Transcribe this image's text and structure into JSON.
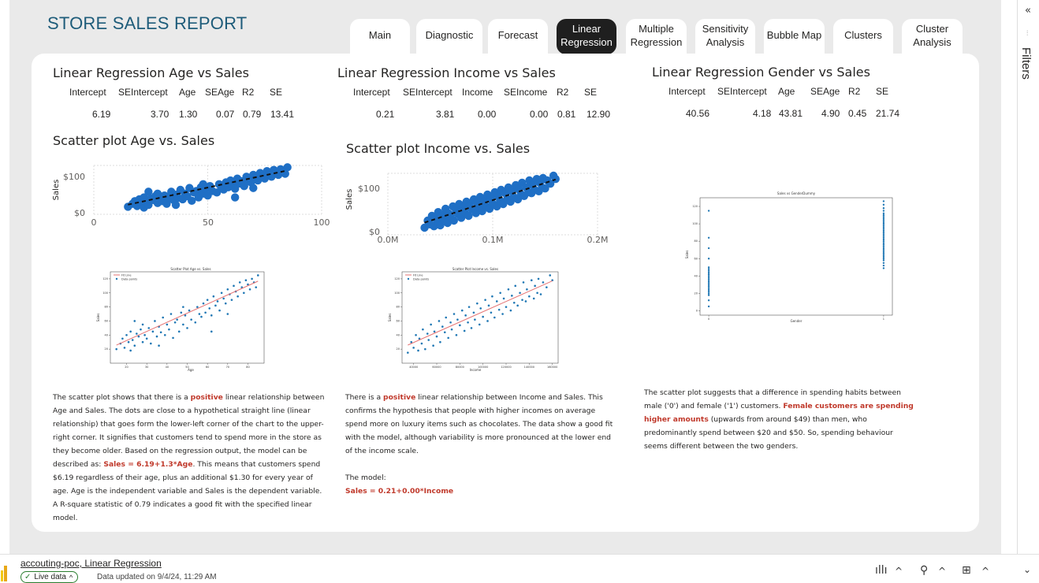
{
  "report": {
    "title": "STORE SALES REPORT"
  },
  "tabs": [
    {
      "label": "Main",
      "active": false
    },
    {
      "label": "Diagnostic",
      "active": false
    },
    {
      "label": "Forecast",
      "active": false
    },
    {
      "label": "Linear\nRegression",
      "active": true
    },
    {
      "label": "Multiple\nRegression",
      "active": false
    },
    {
      "label": "Sensitivity\nAnalysis",
      "active": false
    },
    {
      "label": "Bubble Map",
      "active": false
    },
    {
      "label": "Clusters",
      "active": false
    },
    {
      "label": "Cluster\nAnalysis",
      "active": false
    }
  ],
  "age": {
    "title": "Linear Regression Age vs Sales",
    "headers": [
      "Intercept",
      "SEIntercept",
      "Age",
      "SEAge",
      "R2",
      "SE"
    ],
    "values": [
      "6.19",
      "3.70",
      "1.30",
      "0.07",
      "0.79",
      "13.41"
    ],
    "scatter_title": "Scatter plot Age vs. Sales",
    "ylabel": "Sales",
    "yticks": [
      "$100",
      "$0"
    ],
    "xticks": [
      "0",
      "50",
      "100"
    ],
    "fig": {
      "title": "Scatter Plot Age vs. Sales",
      "legend_fit": "Fit Line",
      "legend_points": "Data points",
      "xlabel": "Age",
      "ylabel": "Sales"
    },
    "para": {
      "p1": "The scatter plot shows that there is a ",
      "h1": "positive",
      "p2": " linear relationship between Age and Sales. The dots are close to a hypothetical straight line (linear relationship) that goes form the lower-left corner of the chart to the upper-right corner. It signifies that customers tend to spend more in the store as they become older. Based on the regression output, the model can be described as: ",
      "h2": "Sales = 6.19+1.3*Age",
      "p3": ". This means that customers spend $6.19 regardless of their age, plus an additional $1.30 for every year of age. Age is the independent variable and Sales is the dependent variable. A R-square statistic of 0.79 indicates a good fit with the specified linear model."
    }
  },
  "income": {
    "title": "Linear Regression Income vs Sales",
    "headers": [
      "Intercept",
      "SEIntercept",
      "Income",
      "SEIncome",
      "R2",
      "SE"
    ],
    "values": [
      "0.21",
      "3.81",
      "0.00",
      "0.00",
      "0.81",
      "12.90"
    ],
    "scatter_title": "Scatter plot Income vs. Sales",
    "ylabel": "Sales",
    "yticks": [
      "$100",
      "$0"
    ],
    "xticks": [
      "0.0M",
      "0.1M",
      "0.2M"
    ],
    "fig": {
      "title": "Scatter Plot Income vs. Sales",
      "legend_fit": "Fit Line",
      "legend_points": "Data points",
      "xlabel": "Income",
      "ylabel": "Sales"
    },
    "para": {
      "p1": "There is a ",
      "h1": "positive",
      "p2": " linear relationship between Income and Sales. This confirms the hypothesis that people with higher incomes on average spend more on luxury items such as chocolates. The data show a good fit with the model, although variability is more pronounced at the lower end of the income scale.",
      "model_label": "The model:",
      "h2": "Sales = 0.21+0.00*Income"
    }
  },
  "gender": {
    "title": "Linear Regression Gender vs Sales",
    "headers": [
      "Intercept",
      "SEIntercept",
      "Age",
      "SEAge",
      "R2",
      "SE"
    ],
    "values": [
      "40.56",
      "4.18",
      "43.81",
      "4.90",
      "0.45",
      "21.74"
    ],
    "fig": {
      "title": "Sales vs GenderDummy",
      "xlabel": "Gender",
      "ylabel": "Sales"
    },
    "para": {
      "p1": "The scatter plot suggests that a difference in spending habits between male ('0') and female ('1') customers. ",
      "h1": "Female customers are spending higher amounts",
      "p2": " (upwards from around $49) than men, who predominantly spend between $20 and $50. So, spending behaviour seems different between the two genders."
    }
  },
  "chart_data": [
    {
      "type": "scatter",
      "title": "Scatter plot Age vs. Sales",
      "xlabel": "Age",
      "ylabel": "Sales",
      "xlim": [
        0,
        100
      ],
      "ylim": [
        0,
        130
      ],
      "x": [
        15,
        17,
        18,
        19,
        20,
        21,
        22,
        22,
        23,
        24,
        25,
        26,
        27,
        28,
        28,
        29,
        30,
        31,
        32,
        33,
        34,
        35,
        36,
        37,
        38,
        39,
        40,
        41,
        42,
        43,
        44,
        45,
        46,
        47,
        48,
        49,
        50,
        51,
        52,
        54,
        55,
        56,
        57,
        58,
        59,
        60,
        61,
        62,
        63,
        64,
        65,
        66,
        67,
        68,
        69,
        70,
        71,
        72,
        73,
        74,
        75,
        76,
        77,
        78,
        79,
        80,
        81,
        82,
        83,
        84,
        85,
        24,
        36,
        48,
        62,
        70
      ],
      "y": [
        20,
        28,
        35,
        22,
        40,
        30,
        18,
        45,
        33,
        25,
        42,
        38,
        48,
        30,
        55,
        40,
        35,
        50,
        28,
        45,
        60,
        38,
        52,
        44,
        65,
        40,
        55,
        48,
        70,
        36,
        58,
        62,
        45,
        72,
        55,
        68,
        50,
        75,
        62,
        58,
        80,
        70,
        66,
        85,
        72,
        90,
        78,
        68,
        95,
        82,
        88,
        75,
        100,
        92,
        85,
        105,
        98,
        90,
        110,
        102,
        95,
        115,
        108,
        100,
        118,
        112,
        105,
        120,
        115,
        108,
        125,
        60,
        25,
        80,
        45,
        70
      ],
      "fit": {
        "intercept": 6.19,
        "slope": 1.3
      }
    },
    {
      "type": "scatter",
      "title": "Scatter plot Income vs. Sales",
      "xlabel": "Income",
      "ylabel": "Sales",
      "xlim": [
        0,
        200000
      ],
      "ylim": [
        0,
        130
      ],
      "x": [
        35000,
        38000,
        40000,
        42000,
        44000,
        45000,
        47000,
        48000,
        50000,
        52000,
        53000,
        55000,
        57000,
        58000,
        60000,
        62000,
        63000,
        65000,
        67000,
        68000,
        70000,
        72000,
        73000,
        75000,
        77000,
        78000,
        80000,
        82000,
        84000,
        85000,
        87000,
        88000,
        90000,
        92000,
        93000,
        95000,
        97000,
        98000,
        100000,
        102000,
        104000,
        105000,
        107000,
        108000,
        110000,
        112000,
        114000,
        115000,
        117000,
        118000,
        120000,
        122000,
        124000,
        125000,
        127000,
        128000,
        130000,
        132000,
        134000,
        135000,
        137000,
        138000,
        140000,
        142000,
        144000,
        145000,
        147000,
        148000,
        150000,
        152000,
        155000,
        158000,
        160000
      ],
      "y": [
        15,
        30,
        22,
        40,
        18,
        35,
        28,
        48,
        20,
        42,
        33,
        55,
        25,
        45,
        38,
        60,
        30,
        52,
        44,
        65,
        36,
        58,
        48,
        70,
        40,
        62,
        54,
        75,
        46,
        68,
        58,
        80,
        50,
        72,
        62,
        85,
        55,
        78,
        66,
        90,
        60,
        82,
        72,
        95,
        65,
        88,
        76,
        100,
        70,
        92,
        80,
        105,
        75,
        96,
        86,
        110,
        82,
        100,
        90,
        115,
        88,
        105,
        95,
        118,
        92,
        110,
        100,
        120,
        98,
        115,
        108,
        125,
        118
      ],
      "fit": {
        "intercept": 0.21,
        "slope": 0.00073
      }
    },
    {
      "type": "scatter",
      "title": "Sales vs GenderDummy",
      "xlabel": "Gender",
      "ylabel": "Sales",
      "xlim": [
        0,
        1
      ],
      "ylim": [
        0,
        120
      ],
      "x": [
        0,
        0,
        0,
        0,
        0,
        0,
        0,
        0,
        0,
        0,
        0,
        0,
        0,
        0,
        0,
        0,
        0,
        0,
        0,
        0,
        0,
        0,
        0,
        1,
        1,
        1,
        1,
        1,
        1,
        1,
        1,
        1,
        1,
        1,
        1,
        1,
        1,
        1,
        1,
        1,
        1,
        1,
        1,
        1,
        1,
        1,
        1,
        1,
        1,
        1,
        1,
        1,
        1,
        1,
        1,
        1,
        1,
        1
      ],
      "y": [
        5,
        12,
        18,
        20,
        22,
        24,
        26,
        28,
        30,
        32,
        34,
        36,
        38,
        40,
        42,
        44,
        46,
        48,
        50,
        60,
        72,
        84,
        115,
        49,
        52,
        55,
        58,
        60,
        62,
        64,
        66,
        68,
        70,
        72,
        74,
        76,
        78,
        80,
        82,
        84,
        86,
        88,
        90,
        92,
        94,
        96,
        98,
        100,
        102,
        104,
        106,
        108,
        110,
        112,
        115,
        118,
        122,
        126
      ]
    }
  ],
  "sidebar": {
    "collapse_icon": "double-chevron-left-icon",
    "label": "Filters"
  },
  "status": {
    "report_name": "accouting-poc, Linear Regression",
    "live": "Live data",
    "updated": "Data updated on 9/4/24, 11:29 AM"
  }
}
